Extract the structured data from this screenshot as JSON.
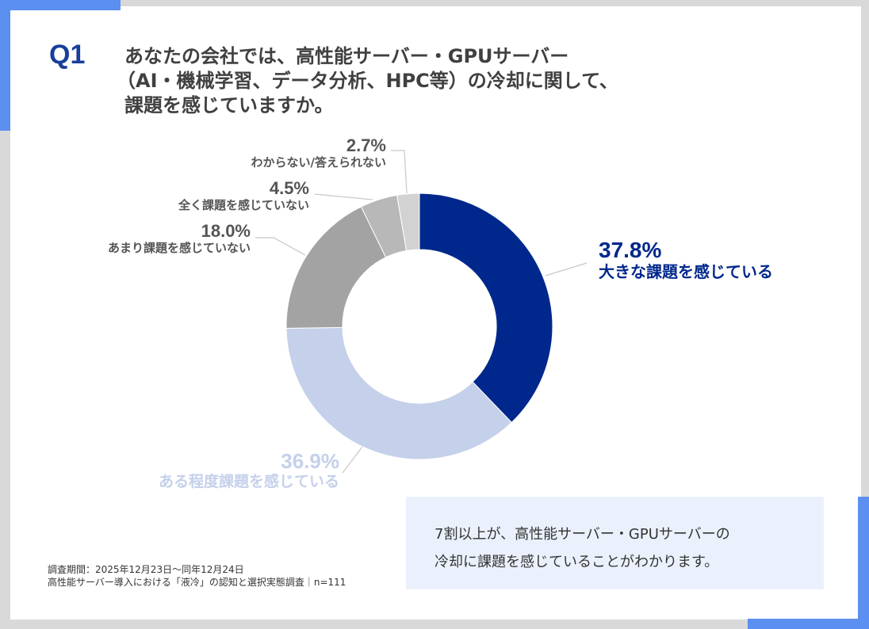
{
  "question_number": "Q1",
  "title_lines": [
    "あなたの会社では、高性能サーバー・GPUサーバー",
    "（AI・機械学習、データ分析、HPC等）の冷却に関して、",
    "課題を感じていますか。"
  ],
  "chart_data": {
    "type": "pie",
    "variant": "donut",
    "categories": [
      "大きな課題を感じている",
      "ある程度課題を感じている",
      "あまり課題を感じていない",
      "全く課題を感じていない",
      "わからない/答えられない"
    ],
    "values": [
      37.8,
      36.9,
      18.0,
      4.5,
      2.7
    ],
    "labels": [
      "37.8%",
      "36.9%",
      "18.0%",
      "4.5%",
      "2.7%"
    ],
    "colors": [
      "#00288c",
      "#c5d0ea",
      "#a3a3a3",
      "#b8b8b8",
      "#d2d2d2"
    ],
    "start": "top",
    "direction": "clockwise"
  },
  "note_lines": [
    "7割以上が、高性能サーバー・GPUサーバーの",
    "冷却に課題を感じていることがわかります。"
  ],
  "footer_lines": [
    "調査期間：2025年12月23日～同年12月24日",
    "高性能サーバー導入における「液冷」の認知と選択実態調査｜n=111"
  ],
  "colors": {
    "accent": "#5b8ff0",
    "question": "#173f9a",
    "background": "#d9d9d9",
    "note_bg": "#ebf1fc"
  }
}
